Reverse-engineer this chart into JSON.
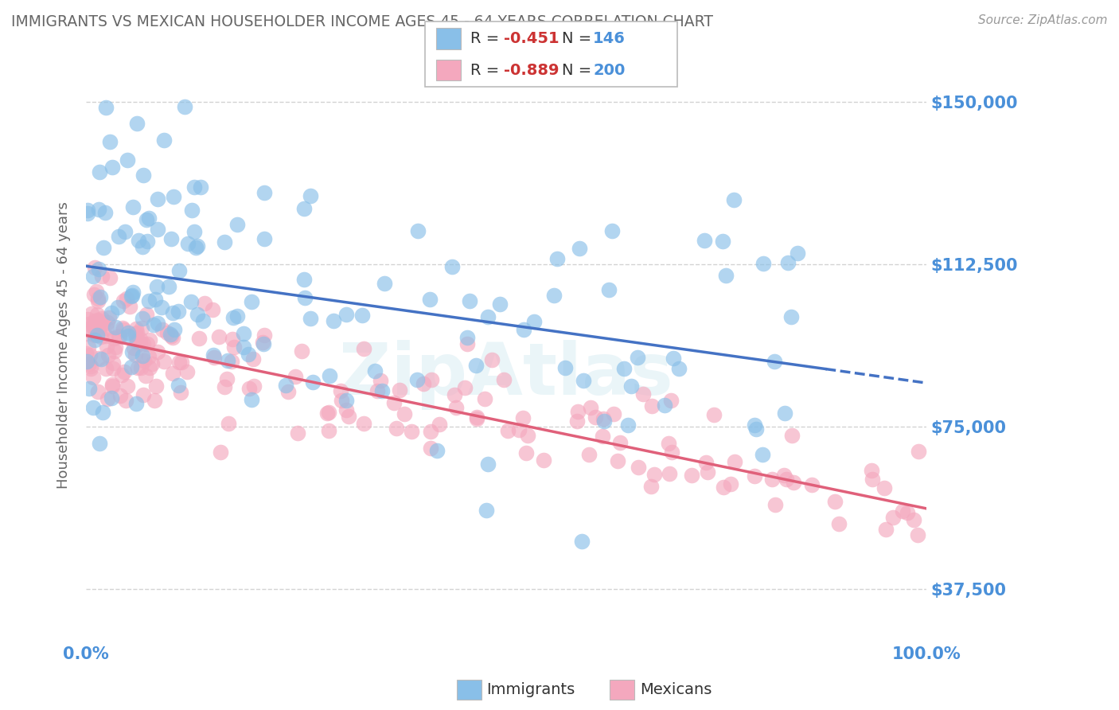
{
  "title": "IMMIGRANTS VS MEXICAN HOUSEHOLDER INCOME AGES 45 - 64 YEARS CORRELATION CHART",
  "source": "Source: ZipAtlas.com",
  "ylabel": "Householder Income Ages 45 - 64 years",
  "xlim": [
    0,
    100
  ],
  "ylim": [
    25000,
    162500
  ],
  "yticks": [
    37500,
    75000,
    112500,
    150000
  ],
  "ytick_labels": [
    "$37,500",
    "$75,000",
    "$112,500",
    "$150,000"
  ],
  "xtick_labels": [
    "0.0%",
    "100.0%"
  ],
  "immigrants_color": "#89bfe8",
  "mexicans_color": "#f4a8be",
  "immigrants_line_color": "#4472c4",
  "mexicans_line_color": "#e0607a",
  "watermark": "ZipAtlas",
  "background_color": "#ffffff",
  "grid_color": "#c8c8c8",
  "title_color": "#666666",
  "tick_label_color": "#4a90d9",
  "legend_r_color": "#cc3333",
  "legend_n_color": "#4a90d9",
  "legend_text_color": "#333333"
}
